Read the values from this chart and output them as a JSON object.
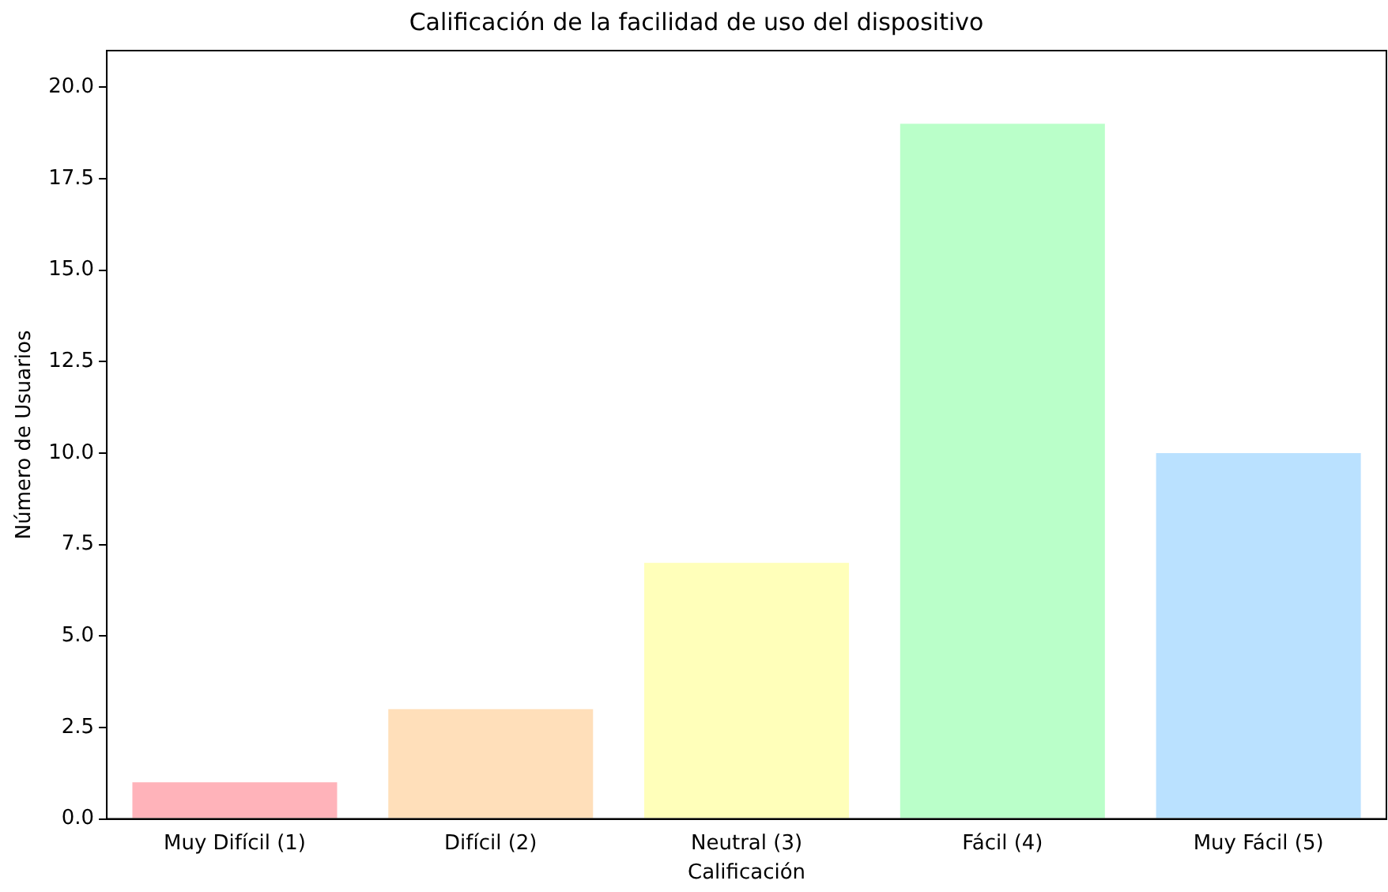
{
  "chart_data": {
    "type": "bar",
    "title": "Calificación de la facilidad de uso del dispositivo",
    "xlabel": "Calificación",
    "ylabel": "Número de Usuarios",
    "categories": [
      "Muy Difícil (1)",
      "Difícil (2)",
      "Neutral (3)",
      "Fácil (4)",
      "Muy Fácil (5)"
    ],
    "values": [
      1,
      3,
      7,
      19,
      10
    ],
    "colors": [
      "#ffb3ba",
      "#ffdfba",
      "#ffffba",
      "#baffc9",
      "#bae1ff"
    ],
    "ylim": [
      0,
      21
    ],
    "yticks": [
      {
        "value": 0,
        "label": "0.0"
      },
      {
        "value": 2.5,
        "label": "2.5"
      },
      {
        "value": 5,
        "label": "5.0"
      },
      {
        "value": 7.5,
        "label": "7.5"
      },
      {
        "value": 10,
        "label": "10.0"
      },
      {
        "value": 12.5,
        "label": "12.5"
      },
      {
        "value": 15,
        "label": "15.0"
      },
      {
        "value": 17.5,
        "label": "17.5"
      },
      {
        "value": 20,
        "label": "20.0"
      }
    ],
    "grid": false,
    "legend": false
  }
}
